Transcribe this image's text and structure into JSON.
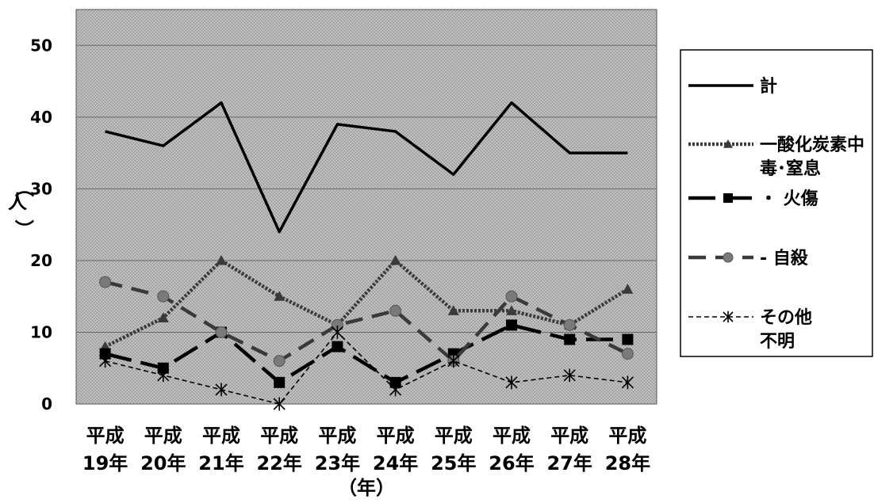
{
  "chart_data": {
    "type": "line",
    "categories": [
      [
        "平成",
        "19年"
      ],
      [
        "平成",
        "20年"
      ],
      [
        "平成",
        "21年"
      ],
      [
        "平成",
        "22年"
      ],
      [
        "平成",
        "23年"
      ],
      [
        "平成",
        "24年"
      ],
      [
        "平成",
        "25年"
      ],
      [
        "平成",
        "26年"
      ],
      [
        "平成",
        "27年"
      ],
      [
        "平成",
        "28年"
      ]
    ],
    "ylabel": "（人）",
    "xlabel": "（年）",
    "ylim": [
      0,
      55
    ],
    "yticks": [
      0,
      10,
      20,
      30,
      40,
      50
    ],
    "grid": true,
    "legend_position": "right",
    "series": [
      {
        "name": "計",
        "label_lines": [
          "計"
        ],
        "values": [
          38,
          36,
          42,
          24,
          39,
          38,
          32,
          42,
          35,
          35
        ],
        "marker": "none",
        "style": "solid",
        "color": "#000000"
      },
      {
        "name": "一酸化炭素中毒・窒息",
        "label_lines": [
          "一酸化炭素中",
          "毒･窒息"
        ],
        "values": [
          8,
          12,
          20,
          15,
          11,
          20,
          13,
          13,
          11,
          16
        ],
        "marker": "triangle",
        "style": "dotted",
        "color": "#3a3a3a"
      },
      {
        "name": "火傷",
        "label_lines": [
          "・ 火傷"
        ],
        "values": [
          7,
          5,
          10,
          3,
          8,
          3,
          7,
          11,
          9,
          9
        ],
        "marker": "square",
        "style": "longdash",
        "color": "#000000"
      },
      {
        "name": "自殺",
        "label_lines": [
          "- 自殺"
        ],
        "values": [
          17,
          15,
          10,
          6,
          11,
          13,
          6,
          15,
          11,
          7
        ],
        "marker": "circle",
        "style": "dash",
        "color": "#3a3a3a"
      },
      {
        "name": "その他不明",
        "label_lines": [
          "その他",
          "不明"
        ],
        "values": [
          6,
          4,
          2,
          0,
          10,
          2,
          6,
          3,
          4,
          3
        ],
        "marker": "star",
        "style": "shortdash",
        "color": "#000000"
      }
    ]
  }
}
